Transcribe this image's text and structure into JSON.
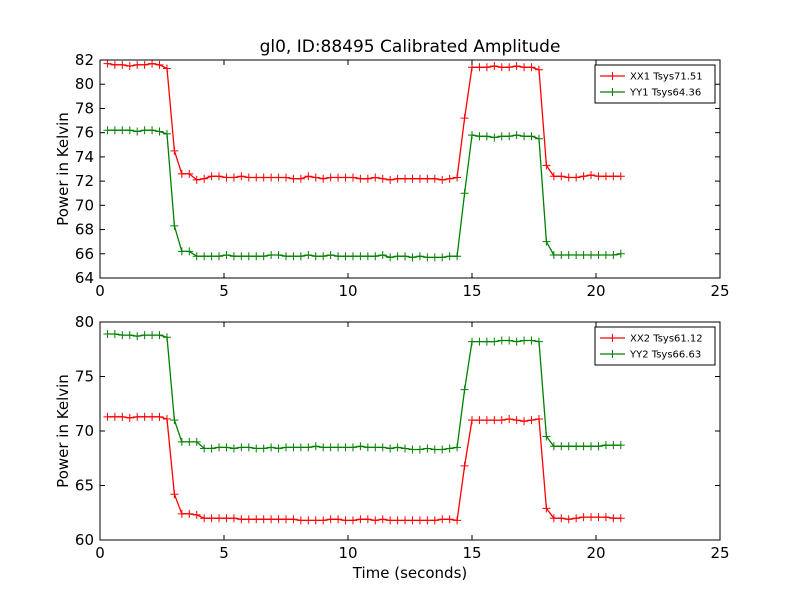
{
  "title": "gl0, ID:88495 Calibrated Amplitude",
  "xlabel": "Time (seconds)",
  "colors": {
    "red": "#ff0000",
    "green": "#008000"
  },
  "chart_data": [
    {
      "type": "line",
      "ylabel": "Power in Kelvin",
      "xlim": [
        0,
        25
      ],
      "ylim": [
        64,
        82
      ],
      "xticks": [
        0,
        5,
        10,
        15,
        20,
        25
      ],
      "yticks": [
        64,
        66,
        68,
        70,
        72,
        74,
        76,
        78,
        80,
        82
      ],
      "grid": false,
      "legend_position": "top-right",
      "series": [
        {
          "name": "XX1 Tsys71.51",
          "color": "#ff0000",
          "x": [
            0.3,
            0.6,
            0.9,
            1.2,
            1.5,
            1.8,
            2.1,
            2.4,
            2.7,
            3.0,
            3.3,
            3.6,
            3.9,
            4.2,
            4.5,
            4.8,
            5.1,
            5.4,
            5.7,
            6.0,
            6.3,
            6.6,
            6.9,
            7.2,
            7.5,
            7.8,
            8.1,
            8.4,
            8.7,
            9.0,
            9.3,
            9.6,
            9.9,
            10.2,
            10.5,
            10.8,
            11.1,
            11.4,
            11.7,
            12.0,
            12.3,
            12.6,
            12.9,
            13.2,
            13.5,
            13.8,
            14.1,
            14.4,
            14.7,
            15.0,
            15.3,
            15.6,
            15.9,
            16.2,
            16.5,
            16.8,
            17.1,
            17.4,
            17.7,
            18.0,
            18.3,
            18.6,
            18.9,
            19.2,
            19.5,
            19.8,
            20.1,
            20.4,
            20.7,
            21.0
          ],
          "y": [
            81.7,
            81.6,
            81.6,
            81.5,
            81.6,
            81.6,
            81.7,
            81.6,
            81.3,
            74.5,
            72.6,
            72.6,
            72.1,
            72.2,
            72.4,
            72.4,
            72.3,
            72.3,
            72.4,
            72.3,
            72.3,
            72.3,
            72.3,
            72.3,
            72.3,
            72.2,
            72.2,
            72.4,
            72.3,
            72.2,
            72.3,
            72.3,
            72.3,
            72.3,
            72.2,
            72.2,
            72.3,
            72.2,
            72.1,
            72.2,
            72.2,
            72.2,
            72.2,
            72.2,
            72.2,
            72.1,
            72.2,
            72.3,
            77.2,
            81.4,
            81.4,
            81.4,
            81.5,
            81.4,
            81.4,
            81.5,
            81.4,
            81.4,
            81.2,
            73.3,
            72.4,
            72.4,
            72.3,
            72.3,
            72.4,
            72.5,
            72.4,
            72.4,
            72.4,
            72.4
          ]
        },
        {
          "name": "YY1 Tsys64.36",
          "color": "#008000",
          "x": [
            0.3,
            0.6,
            0.9,
            1.2,
            1.5,
            1.8,
            2.1,
            2.4,
            2.7,
            3.0,
            3.3,
            3.6,
            3.9,
            4.2,
            4.5,
            4.8,
            5.1,
            5.4,
            5.7,
            6.0,
            6.3,
            6.6,
            6.9,
            7.2,
            7.5,
            7.8,
            8.1,
            8.4,
            8.7,
            9.0,
            9.3,
            9.6,
            9.9,
            10.2,
            10.5,
            10.8,
            11.1,
            11.4,
            11.7,
            12.0,
            12.3,
            12.6,
            12.9,
            13.2,
            13.5,
            13.8,
            14.1,
            14.4,
            14.7,
            15.0,
            15.3,
            15.6,
            15.9,
            16.2,
            16.5,
            16.8,
            17.1,
            17.4,
            17.7,
            18.0,
            18.3,
            18.6,
            18.9,
            19.2,
            19.5,
            19.8,
            20.1,
            20.4,
            20.7,
            21.0
          ],
          "y": [
            76.2,
            76.2,
            76.2,
            76.2,
            76.1,
            76.2,
            76.2,
            76.1,
            75.9,
            68.3,
            66.2,
            66.2,
            65.8,
            65.8,
            65.8,
            65.8,
            65.9,
            65.8,
            65.8,
            65.8,
            65.8,
            65.8,
            65.9,
            65.9,
            65.8,
            65.8,
            65.8,
            65.9,
            65.8,
            65.8,
            65.9,
            65.8,
            65.8,
            65.8,
            65.8,
            65.8,
            65.8,
            65.9,
            65.7,
            65.8,
            65.8,
            65.7,
            65.8,
            65.7,
            65.7,
            65.7,
            65.8,
            65.8,
            71.0,
            75.8,
            75.7,
            75.7,
            75.6,
            75.7,
            75.7,
            75.8,
            75.7,
            75.7,
            75.5,
            67.0,
            65.9,
            65.9,
            65.9,
            65.9,
            65.9,
            65.9,
            65.9,
            65.9,
            65.9,
            66.0
          ]
        }
      ]
    },
    {
      "type": "line",
      "ylabel": "Power in Kelvin",
      "xlabel": "Time (seconds)",
      "xlim": [
        0,
        25
      ],
      "ylim": [
        60,
        80
      ],
      "xticks": [
        0,
        5,
        10,
        15,
        20,
        25
      ],
      "yticks": [
        60,
        65,
        70,
        75,
        80
      ],
      "grid": false,
      "legend_position": "top-right",
      "series": [
        {
          "name": "XX2 Tsys61.12",
          "color": "#ff0000",
          "x": [
            0.3,
            0.6,
            0.9,
            1.2,
            1.5,
            1.8,
            2.1,
            2.4,
            2.7,
            3.0,
            3.3,
            3.6,
            3.9,
            4.2,
            4.5,
            4.8,
            5.1,
            5.4,
            5.7,
            6.0,
            6.3,
            6.6,
            6.9,
            7.2,
            7.5,
            7.8,
            8.1,
            8.4,
            8.7,
            9.0,
            9.3,
            9.6,
            9.9,
            10.2,
            10.5,
            10.8,
            11.1,
            11.4,
            11.7,
            12.0,
            12.3,
            12.6,
            12.9,
            13.2,
            13.5,
            13.8,
            14.1,
            14.4,
            14.7,
            15.0,
            15.3,
            15.6,
            15.9,
            16.2,
            16.5,
            16.8,
            17.1,
            17.4,
            17.7,
            18.0,
            18.3,
            18.6,
            18.9,
            19.2,
            19.5,
            19.8,
            20.1,
            20.4,
            20.7,
            21.0
          ],
          "y": [
            71.3,
            71.3,
            71.3,
            71.2,
            71.3,
            71.3,
            71.3,
            71.3,
            71.1,
            64.2,
            62.4,
            62.4,
            62.3,
            62.0,
            62.0,
            62.0,
            62.0,
            62.0,
            61.9,
            61.9,
            61.9,
            61.9,
            61.9,
            61.9,
            61.9,
            61.9,
            61.8,
            61.8,
            61.8,
            61.8,
            61.9,
            61.9,
            61.8,
            61.8,
            61.9,
            61.9,
            61.8,
            61.9,
            61.8,
            61.8,
            61.8,
            61.8,
            61.8,
            61.8,
            61.8,
            61.9,
            61.9,
            61.8,
            66.8,
            71.0,
            71.0,
            71.0,
            71.0,
            71.0,
            71.1,
            71.0,
            70.9,
            71.0,
            71.1,
            62.9,
            62.0,
            62.0,
            61.9,
            62.0,
            62.1,
            62.1,
            62.1,
            62.1,
            62.0,
            62.0
          ]
        },
        {
          "name": "YY2 Tsys66.63",
          "color": "#008000",
          "x": [
            0.3,
            0.6,
            0.9,
            1.2,
            1.5,
            1.8,
            2.1,
            2.4,
            2.7,
            3.0,
            3.3,
            3.6,
            3.9,
            4.2,
            4.5,
            4.8,
            5.1,
            5.4,
            5.7,
            6.0,
            6.3,
            6.6,
            6.9,
            7.2,
            7.5,
            7.8,
            8.1,
            8.4,
            8.7,
            9.0,
            9.3,
            9.6,
            9.9,
            10.2,
            10.5,
            10.8,
            11.1,
            11.4,
            11.7,
            12.0,
            12.3,
            12.6,
            12.9,
            13.2,
            13.5,
            13.8,
            14.1,
            14.4,
            14.7,
            15.0,
            15.3,
            15.6,
            15.9,
            16.2,
            16.5,
            16.8,
            17.1,
            17.4,
            17.7,
            18.0,
            18.3,
            18.6,
            18.9,
            19.2,
            19.5,
            19.8,
            20.1,
            20.4,
            20.7,
            21.0
          ],
          "y": [
            78.9,
            78.9,
            78.8,
            78.8,
            78.7,
            78.8,
            78.8,
            78.8,
            78.6,
            71.0,
            69.0,
            69.0,
            69.0,
            68.4,
            68.4,
            68.5,
            68.5,
            68.4,
            68.5,
            68.5,
            68.4,
            68.4,
            68.5,
            68.4,
            68.5,
            68.5,
            68.5,
            68.5,
            68.6,
            68.5,
            68.5,
            68.5,
            68.5,
            68.5,
            68.6,
            68.5,
            68.5,
            68.5,
            68.4,
            68.5,
            68.4,
            68.3,
            68.3,
            68.4,
            68.3,
            68.3,
            68.4,
            68.5,
            73.8,
            78.2,
            78.2,
            78.2,
            78.2,
            78.3,
            78.3,
            78.2,
            78.3,
            78.3,
            78.2,
            69.5,
            68.6,
            68.6,
            68.6,
            68.6,
            68.6,
            68.6,
            68.6,
            68.7,
            68.7,
            68.7
          ]
        }
      ]
    }
  ]
}
